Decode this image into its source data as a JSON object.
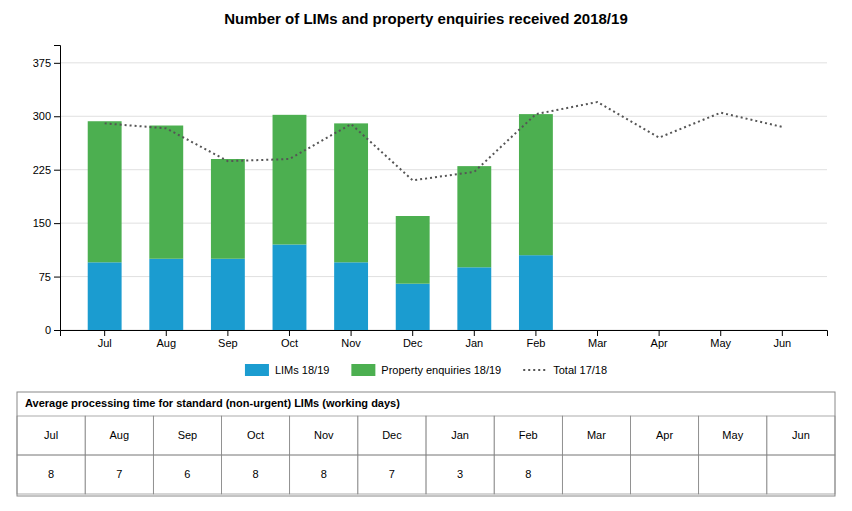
{
  "chart_data": [
    {
      "type": "bar",
      "title": "Number of LIMs and property enquiries received 2018/19",
      "categories": [
        "Jul",
        "Aug",
        "Sep",
        "Oct",
        "Nov",
        "Dec",
        "Jan",
        "Feb",
        "Mar",
        "Apr",
        "May",
        "Jun"
      ],
      "stacked": true,
      "series": [
        {
          "name": "LIMs 18/19",
          "type": "bar",
          "color": "#1B9CD0",
          "values": [
            95,
            100,
            100,
            120,
            95,
            65,
            88,
            105,
            null,
            null,
            null,
            null
          ]
        },
        {
          "name": "Property enquiries 18/19",
          "type": "bar",
          "color": "#4CAF50",
          "values": [
            198,
            187,
            140,
            182,
            195,
            95,
            142,
            198,
            null,
            null,
            null,
            null
          ]
        },
        {
          "name": "Total 17/18",
          "type": "line",
          "color": "#555555",
          "line_style": "dotted",
          "values": [
            290,
            283,
            237,
            240,
            289,
            210,
            222,
            303,
            320,
            270,
            305,
            285
          ]
        }
      ],
      "ylim": [
        0,
        400
      ],
      "yticks": [
        0,
        75,
        150,
        225,
        300,
        375
      ],
      "grid": true,
      "legend": "bottom"
    },
    {
      "type": "table",
      "title": "Average processing time for standard (non-urgent) LIMs (working days)",
      "categories": [
        "Jul",
        "Aug",
        "Sep",
        "Oct",
        "Nov",
        "Dec",
        "Jan",
        "Feb",
        "Mar",
        "Apr",
        "May",
        "Jun"
      ],
      "values": [
        8,
        7,
        6,
        8,
        8,
        7,
        3,
        8,
        null,
        null,
        null,
        null
      ]
    }
  ]
}
